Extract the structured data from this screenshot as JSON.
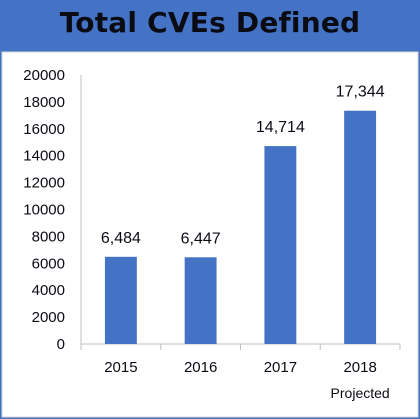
{
  "chart_data": {
    "type": "bar",
    "title": "Total CVEs Defined",
    "categories": [
      "2015",
      "2016",
      "2017",
      "2018"
    ],
    "category_sublabels": [
      "",
      "",
      "",
      "Projected"
    ],
    "values": [
      6484,
      6447,
      14714,
      17344
    ],
    "data_labels": [
      "6,484",
      "6,447",
      "14,714",
      "17,344"
    ],
    "ylim": [
      0,
      20000
    ],
    "yticks": [
      "0",
      "2000",
      "4000",
      "6000",
      "8000",
      "10000",
      "12000",
      "14000",
      "16000",
      "18000",
      "20000"
    ],
    "grid": false,
    "legend": "none",
    "colors": {
      "background": "#4472c4",
      "bar": "#4472c4",
      "axis": "#bfbfbf",
      "text": "#0b0b14"
    }
  }
}
